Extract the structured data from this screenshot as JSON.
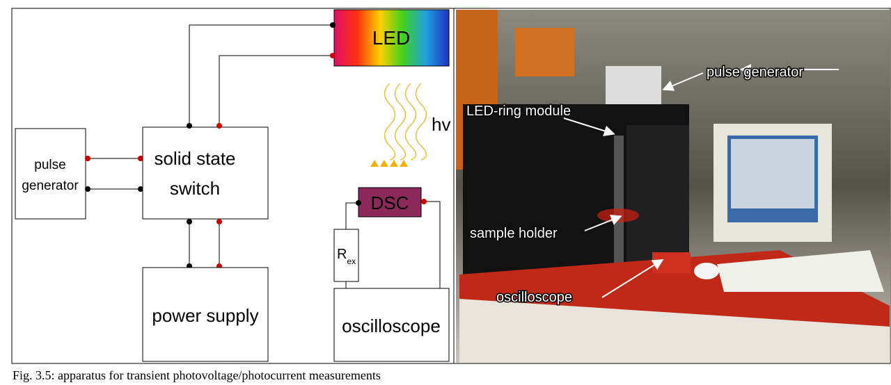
{
  "diagram": {
    "led": "LED",
    "hv": "hv",
    "pulse_generator": [
      "pulse",
      "generator"
    ],
    "switch": [
      "solid state",
      "switch"
    ],
    "power_supply": "power supply",
    "dsc": "DSC",
    "resistor": {
      "symbol": "R",
      "subscript": "ex"
    },
    "oscilloscope": "oscilloscope"
  },
  "photo": {
    "labels": [
      "pulse generator",
      "LED-ring module",
      "sample holder",
      "oscilloscope"
    ]
  },
  "caption": "Fig. 3.5: apparatus for transient photovoltage/photocurrent measurements"
}
